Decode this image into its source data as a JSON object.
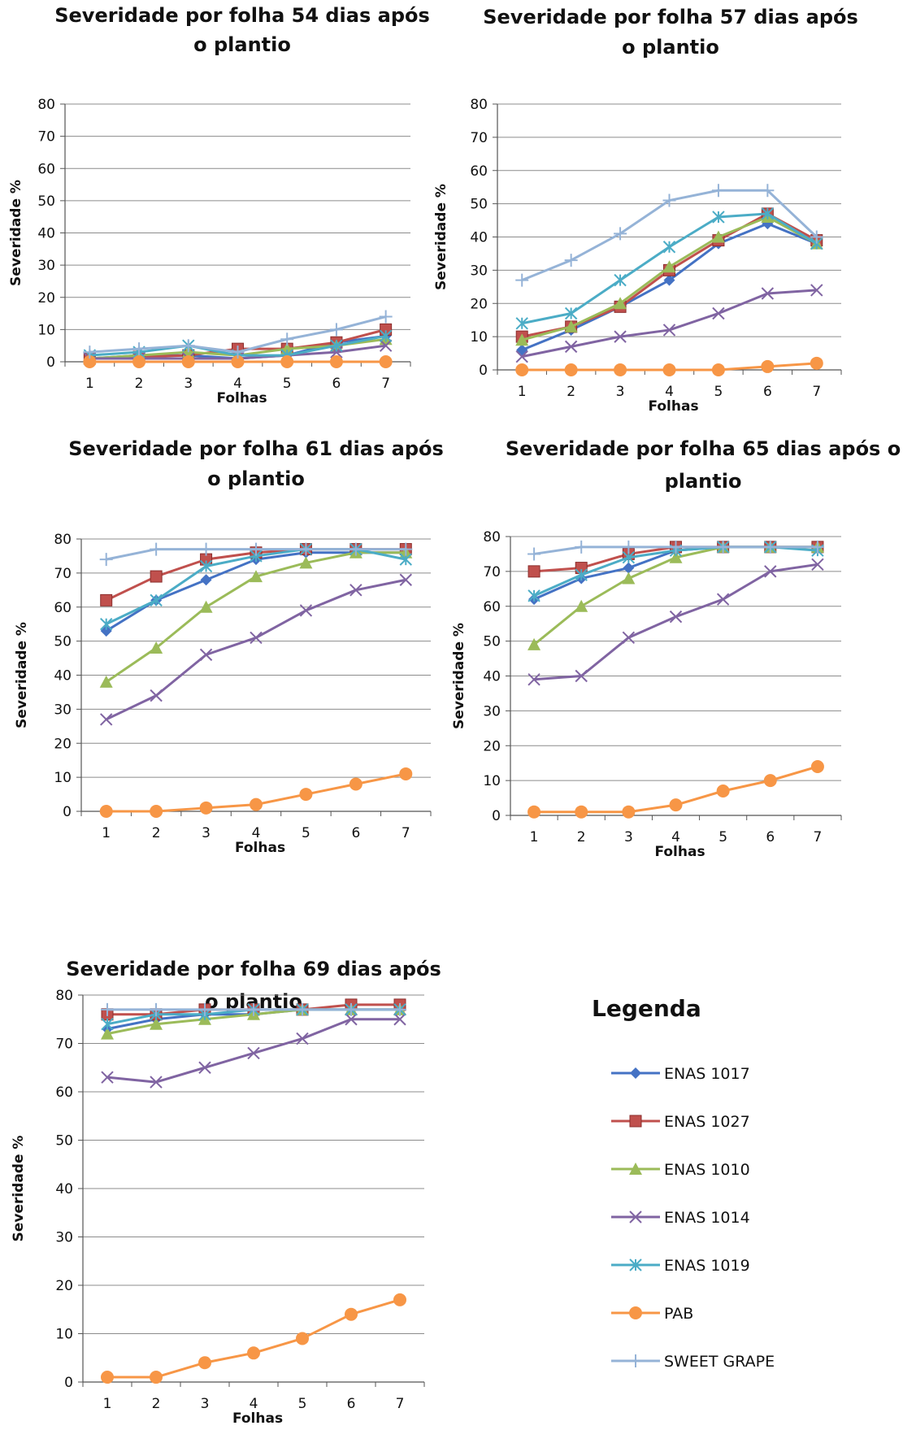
{
  "chart_data": [
    {
      "type": "line",
      "title": [
        "Severidade por folha 54 dias após",
        "o plantio"
      ],
      "xlabel": "Folhas",
      "ylabel": "Severidade %",
      "x": [
        1,
        2,
        3,
        4,
        5,
        6,
        7
      ],
      "ylim": [
        0,
        80
      ],
      "yticks": [
        0,
        10,
        20,
        30,
        40,
        50,
        60,
        70,
        80
      ],
      "grid": true,
      "series": [
        {
          "name": "ENAS 1017",
          "values": [
            1,
            2,
            2,
            1,
            2,
            6,
            8
          ]
        },
        {
          "name": "ENAS 1027",
          "values": [
            1,
            1.5,
            2,
            4,
            4,
            6,
            10
          ]
        },
        {
          "name": "ENAS 1010",
          "values": [
            1,
            2,
            3,
            2,
            4,
            5,
            7
          ]
        },
        {
          "name": "ENAS 1014",
          "values": [
            1,
            1,
            1,
            1,
            2,
            3,
            5
          ]
        },
        {
          "name": "ENAS 1019",
          "values": [
            2,
            3,
            5,
            2,
            2,
            5,
            8
          ]
        },
        {
          "name": "PAB",
          "values": [
            0,
            0,
            0,
            0,
            0,
            0,
            0
          ]
        },
        {
          "name": "SWEET GRAPE",
          "values": [
            3,
            4,
            5,
            3,
            7,
            10,
            14
          ]
        }
      ]
    },
    {
      "type": "line",
      "title": [
        "Severidade por folha 57 dias após",
        "o plantio"
      ],
      "xlabel": "Folhas",
      "ylabel": "Severidade %",
      "x": [
        1,
        2,
        3,
        4,
        5,
        6,
        7
      ],
      "ylim": [
        0,
        80
      ],
      "yticks": [
        0,
        10,
        20,
        30,
        40,
        50,
        60,
        70,
        80
      ],
      "grid": true,
      "series": [
        {
          "name": "ENAS 1017",
          "values": [
            6,
            12,
            19,
            27,
            38,
            44,
            38
          ]
        },
        {
          "name": "ENAS 1027",
          "values": [
            10,
            13,
            19,
            30,
            39,
            47,
            39
          ]
        },
        {
          "name": "ENAS 1010",
          "values": [
            9,
            13,
            20,
            31,
            40,
            46,
            38
          ]
        },
        {
          "name": "ENAS 1014",
          "values": [
            4,
            7,
            10,
            12,
            17,
            23,
            24
          ]
        },
        {
          "name": "ENAS 1019",
          "values": [
            14,
            17,
            27,
            37,
            46,
            47,
            38
          ]
        },
        {
          "name": "PAB",
          "values": [
            0,
            0,
            0,
            0,
            0,
            1,
            2
          ]
        },
        {
          "name": "SWEET GRAPE",
          "values": [
            27,
            33,
            41,
            51,
            54,
            54,
            40
          ]
        }
      ]
    },
    {
      "type": "line",
      "title": [
        "Severidade por folha 61 dias após",
        "o plantio"
      ],
      "xlabel": "Folhas",
      "ylabel": "Severidade %",
      "x": [
        1,
        2,
        3,
        4,
        5,
        6,
        7
      ],
      "ylim": [
        0,
        80
      ],
      "yticks": [
        0,
        10,
        20,
        30,
        40,
        50,
        60,
        70,
        80
      ],
      "grid": true,
      "series": [
        {
          "name": "ENAS 1017",
          "values": [
            53,
            62,
            68,
            74,
            76,
            76,
            76
          ]
        },
        {
          "name": "ENAS 1027",
          "values": [
            62,
            69,
            74,
            76,
            77,
            77,
            77
          ]
        },
        {
          "name": "ENAS 1010",
          "values": [
            38,
            48,
            60,
            69,
            73,
            76,
            76
          ]
        },
        {
          "name": "ENAS 1014",
          "values": [
            27,
            34,
            46,
            51,
            59,
            65,
            68
          ]
        },
        {
          "name": "ENAS 1019",
          "values": [
            55,
            62,
            72,
            75,
            77,
            77,
            74
          ]
        },
        {
          "name": "PAB",
          "values": [
            0,
            0,
            1,
            2,
            5,
            8,
            11
          ]
        },
        {
          "name": "SWEET GRAPE",
          "values": [
            74,
            77,
            77,
            77,
            77,
            77,
            77
          ]
        }
      ]
    },
    {
      "type": "line",
      "title": [
        "Severidade por folha 65 dias após o",
        "plantio"
      ],
      "xlabel": "Folhas",
      "ylabel": "Severidade %",
      "x": [
        1,
        2,
        3,
        4,
        5,
        6,
        7
      ],
      "ylim": [
        0,
        80
      ],
      "yticks": [
        0,
        10,
        20,
        30,
        40,
        50,
        60,
        70,
        80
      ],
      "grid": true,
      "series": [
        {
          "name": "ENAS 1017",
          "values": [
            62,
            68,
            71,
            76,
            77,
            77,
            77
          ]
        },
        {
          "name": "ENAS 1027",
          "values": [
            70,
            71,
            75,
            77,
            77,
            77,
            77
          ]
        },
        {
          "name": "ENAS 1010",
          "values": [
            49,
            60,
            68,
            74,
            77,
            77,
            77
          ]
        },
        {
          "name": "ENAS 1014",
          "values": [
            39,
            40,
            51,
            57,
            62,
            70,
            72
          ]
        },
        {
          "name": "ENAS 1019",
          "values": [
            63,
            69,
            74,
            76,
            77,
            77,
            76
          ]
        },
        {
          "name": "PAB",
          "values": [
            1,
            1,
            1,
            3,
            7,
            10,
            14
          ]
        },
        {
          "name": "SWEET GRAPE",
          "values": [
            75,
            77,
            77,
            77,
            77,
            77,
            77
          ]
        }
      ]
    },
    {
      "type": "line",
      "title": [
        "Severidade por folha 69 dias após",
        "o plantio"
      ],
      "xlabel": "Folhas",
      "ylabel": "Severidade %",
      "x": [
        1,
        2,
        3,
        4,
        5,
        6,
        7
      ],
      "ylim": [
        0,
        80
      ],
      "yticks": [
        0,
        10,
        20,
        30,
        40,
        50,
        60,
        70,
        80
      ],
      "grid": true,
      "series": [
        {
          "name": "ENAS 1017",
          "values": [
            73,
            75,
            76,
            76,
            77,
            77,
            77
          ]
        },
        {
          "name": "ENAS 1027",
          "values": [
            76,
            76,
            77,
            77,
            77,
            78,
            78
          ]
        },
        {
          "name": "ENAS 1010",
          "values": [
            72,
            74,
            75,
            76,
            77,
            77,
            77
          ]
        },
        {
          "name": "ENAS 1014",
          "values": [
            63,
            62,
            65,
            68,
            71,
            75,
            75
          ]
        },
        {
          "name": "ENAS 1019",
          "values": [
            74,
            76,
            76,
            77,
            77,
            77,
            77
          ]
        },
        {
          "name": "PAB",
          "values": [
            1,
            1,
            4,
            6,
            9,
            14,
            17
          ]
        },
        {
          "name": "SWEET GRAPE",
          "values": [
            77,
            77,
            77,
            77,
            77,
            77,
            77
          ]
        }
      ]
    }
  ],
  "legend": {
    "title": "Legenda",
    "items": [
      {
        "name": "ENAS 1017",
        "color": "#4472C4",
        "marker": "diamond-marker"
      },
      {
        "name": "ENAS 1027",
        "color": "#C0504D",
        "marker": "square-marker"
      },
      {
        "name": "ENAS 1010",
        "color": "#9BBB59",
        "marker": "triangle-marker"
      },
      {
        "name": "ENAS 1014",
        "color": "#8064A2",
        "marker": "x-marker"
      },
      {
        "name": "ENAS 1019",
        "color": "#4BACC6",
        "marker": "star-marker"
      },
      {
        "name": "PAB",
        "color": "#F79646",
        "marker": "circle-marker"
      },
      {
        "name": "SWEET GRAPE",
        "color": "#95B3D7",
        "marker": "plus-marker"
      }
    ]
  }
}
